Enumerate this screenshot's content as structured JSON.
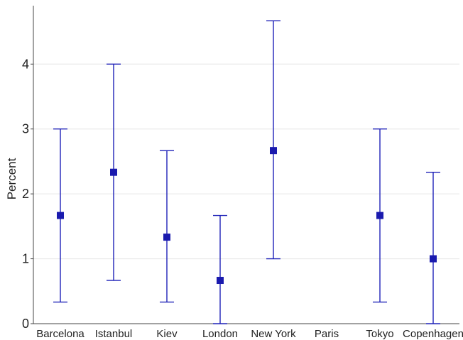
{
  "chart_data": {
    "type": "scatter",
    "subtype": "point-with-error-bars",
    "title": "",
    "xlabel": "",
    "ylabel": "Percent",
    "categories": [
      "Barcelona",
      "Istanbul",
      "Kiev",
      "London",
      "New York",
      "Paris",
      "Tokyo",
      "Copenhagen"
    ],
    "values": [
      1.667,
      2.333,
      1.333,
      0.667,
      2.667,
      null,
      1.667,
      1.0
    ],
    "error_low": [
      0.333,
      0.667,
      0.333,
      0.0,
      1.0,
      null,
      0.333,
      0.0
    ],
    "error_high": [
      3.0,
      4.0,
      2.667,
      1.667,
      4.667,
      null,
      3.0,
      2.333
    ],
    "ylim": [
      0,
      4.9
    ],
    "yticks": [
      0,
      1,
      2,
      3,
      4
    ],
    "grid": true,
    "legend": "none",
    "colors": {
      "series": "#1f22b8",
      "marker": "#1a1aae",
      "grid": "#e6e6e6",
      "axis": "#444444",
      "text": "#222222"
    }
  }
}
